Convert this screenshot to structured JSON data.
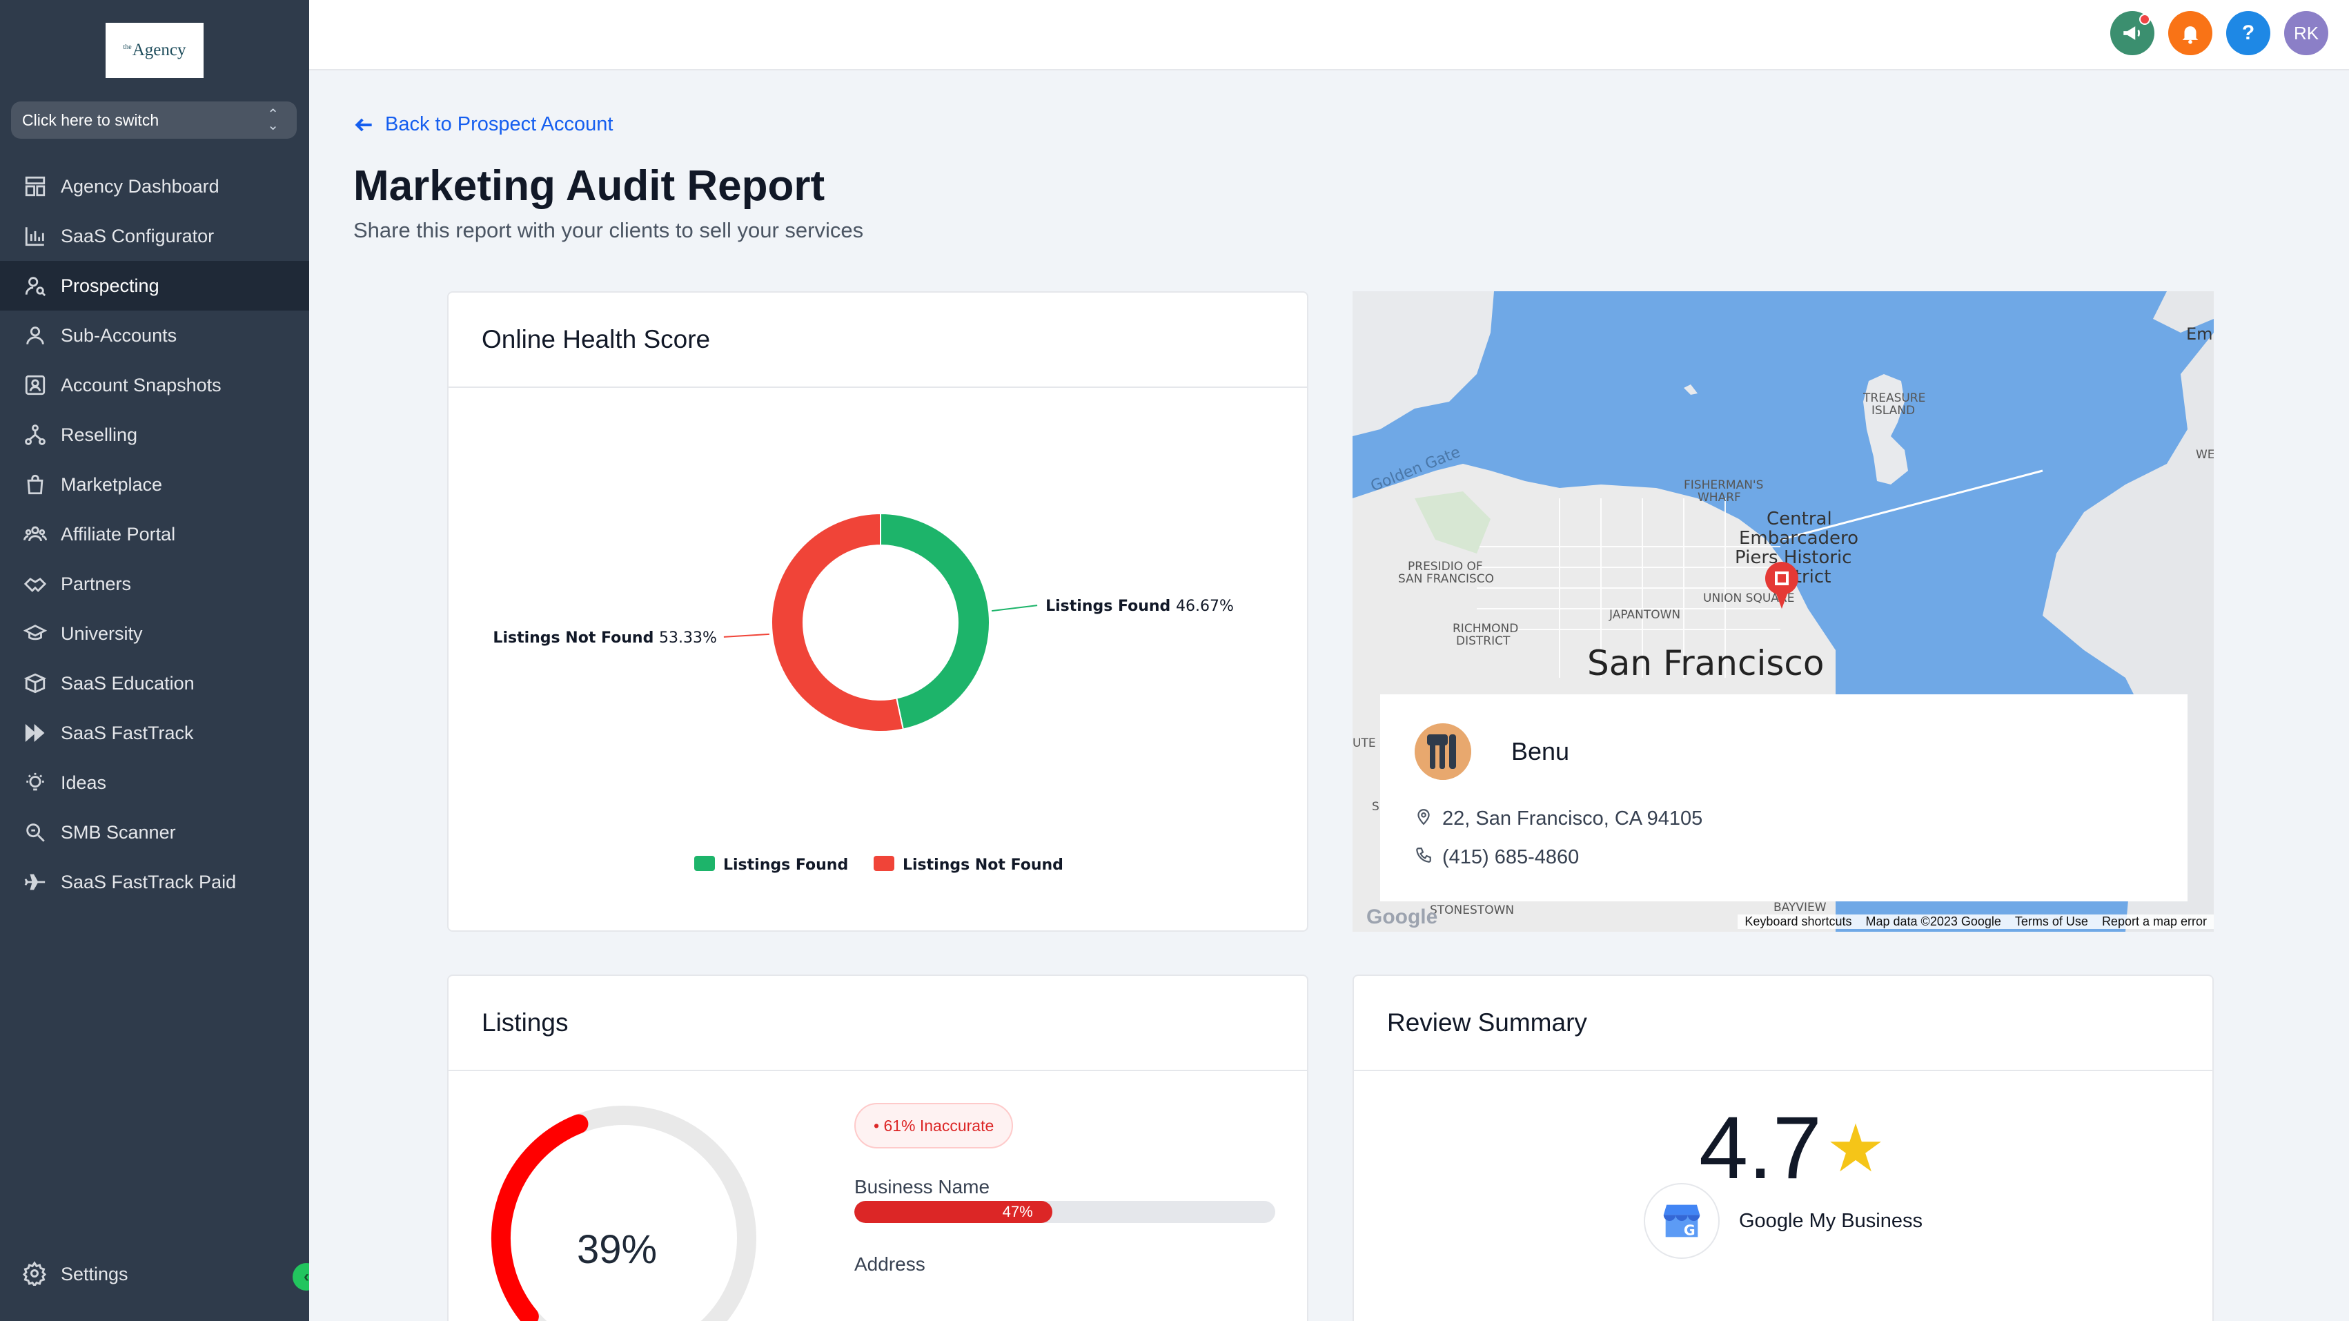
{
  "sidebar": {
    "logo_prefix": "the",
    "logo_text": "Agency",
    "switcher_label": "Click here to switch",
    "items": [
      {
        "label": "Agency Dashboard",
        "icon": "dashboard-icon"
      },
      {
        "label": "SaaS Configurator",
        "icon": "chart-bar-icon"
      },
      {
        "label": "Prospecting",
        "icon": "user-search-icon",
        "active": true
      },
      {
        "label": "Sub-Accounts",
        "icon": "user-icon"
      },
      {
        "label": "Account Snapshots",
        "icon": "snapshot-icon"
      },
      {
        "label": "Reselling",
        "icon": "network-icon"
      },
      {
        "label": "Marketplace",
        "icon": "bag-icon"
      },
      {
        "label": "Affiliate Portal",
        "icon": "users-icon"
      },
      {
        "label": "Partners",
        "icon": "handshake-icon"
      },
      {
        "label": "University",
        "icon": "graduation-cap-icon"
      },
      {
        "label": "SaaS Education",
        "icon": "box-icon"
      },
      {
        "label": "SaaS FastTrack",
        "icon": "fast-forward-icon"
      },
      {
        "label": "Ideas",
        "icon": "lightbulb-icon"
      },
      {
        "label": "SMB Scanner",
        "icon": "magnify-icon"
      },
      {
        "label": "SaaS FastTrack Paid",
        "icon": "plane-icon"
      }
    ],
    "settings_label": "Settings"
  },
  "header": {
    "avatar_initials": "RK",
    "help_glyph": "?"
  },
  "main": {
    "back_link": "Back to Prospect Account",
    "title": "Marketing Audit Report",
    "subtitle": "Share this report with your clients to sell your services"
  },
  "health_card": {
    "title": "Online Health Score",
    "chart_data": {
      "type": "pie",
      "donut": true,
      "slices": [
        {
          "name": "Listings Found",
          "value": 46.67,
          "label": "46.67%",
          "color": "#1db46a"
        },
        {
          "name": "Listings Not Found",
          "value": 53.33,
          "label": "53.33%",
          "color": "#f04438"
        }
      ],
      "legend_position": "bottom"
    }
  },
  "map_card": {
    "city_label": "San Francisco",
    "map_labels": [
      "Golden Gate",
      "TREASURE",
      "ISLAND",
      "FISHERMAN'S",
      "WHARF",
      "Central",
      "Embarcadero",
      "Piers Historic",
      "District",
      "PRESIDIO OF",
      "SAN FRANCISCO",
      "RICHMOND",
      "DISTRICT",
      "JAPANTOWN",
      "UNION SQUARE",
      "Em",
      "WE",
      "UTE",
      "S",
      "BAYVIEW",
      "STONESTOWN"
    ],
    "google_mark": "Google",
    "footer": [
      "Keyboard shortcuts",
      "Map data ©2023 Google",
      "Terms of Use",
      "Report a map error"
    ],
    "business": {
      "name": "Benu",
      "address": "22, San Francisco, CA 94105",
      "phone": "(415) 685-4860"
    }
  },
  "listings_card": {
    "title": "Listings",
    "score": "39%",
    "score_value": 39,
    "badge": "• 61% Inaccurate",
    "fields": [
      {
        "label": "Business Name",
        "value": 47,
        "value_label": "47%"
      },
      {
        "label": "Address"
      }
    ]
  },
  "review_card": {
    "title": "Review Summary",
    "rating": "4.7",
    "source": "Google My Business"
  },
  "colors": {
    "sidebar_bg": "#2f3b4b",
    "accent_blue": "#155eef",
    "found_green": "#1db46a",
    "not_found_red": "#f04438"
  }
}
